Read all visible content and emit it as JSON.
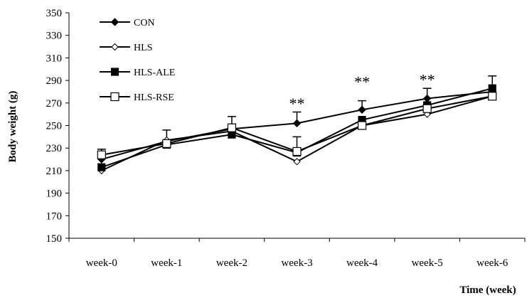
{
  "chart_data": {
    "type": "line",
    "title": "",
    "xlabel": "Time (week)",
    "ylabel": "Body weight (g)",
    "ylim": [
      150,
      350
    ],
    "yticks": [
      150,
      170,
      190,
      210,
      230,
      250,
      270,
      290,
      310,
      330,
      350
    ],
    "categories": [
      "week-0",
      "week-1",
      "week-2",
      "week-3",
      "week-4",
      "week-5",
      "week-6"
    ],
    "grid": false,
    "legend_position": "top-left",
    "series": [
      {
        "name": "CON",
        "marker": "diamond-filled",
        "values": [
          220,
          236,
          247,
          252,
          264,
          274,
          280
        ],
        "errors": [
          9,
          10,
          11,
          10,
          8,
          9,
          14
        ]
      },
      {
        "name": "HLS",
        "marker": "diamond-open",
        "values": [
          210,
          237,
          245,
          218,
          250,
          260,
          276
        ],
        "errors": [
          0,
          0,
          0,
          0,
          0,
          0,
          0
        ]
      },
      {
        "name": "HLS-ALE",
        "marker": "square-filled",
        "values": [
          213,
          233,
          242,
          226,
          255,
          268,
          283
        ],
        "errors": [
          0,
          0,
          0,
          0,
          0,
          0,
          0
        ]
      },
      {
        "name": "HLS-RSE",
        "marker": "square-open",
        "values": [
          224,
          234,
          248,
          227,
          250,
          265,
          276
        ],
        "errors": [
          0,
          0,
          0,
          13,
          0,
          0,
          0
        ]
      }
    ],
    "annotations": [
      {
        "text": "**",
        "category": "week-3",
        "y": 270
      },
      {
        "text": "**",
        "category": "week-4",
        "y": 289
      },
      {
        "text": "**",
        "category": "week-5",
        "y": 291
      }
    ]
  }
}
